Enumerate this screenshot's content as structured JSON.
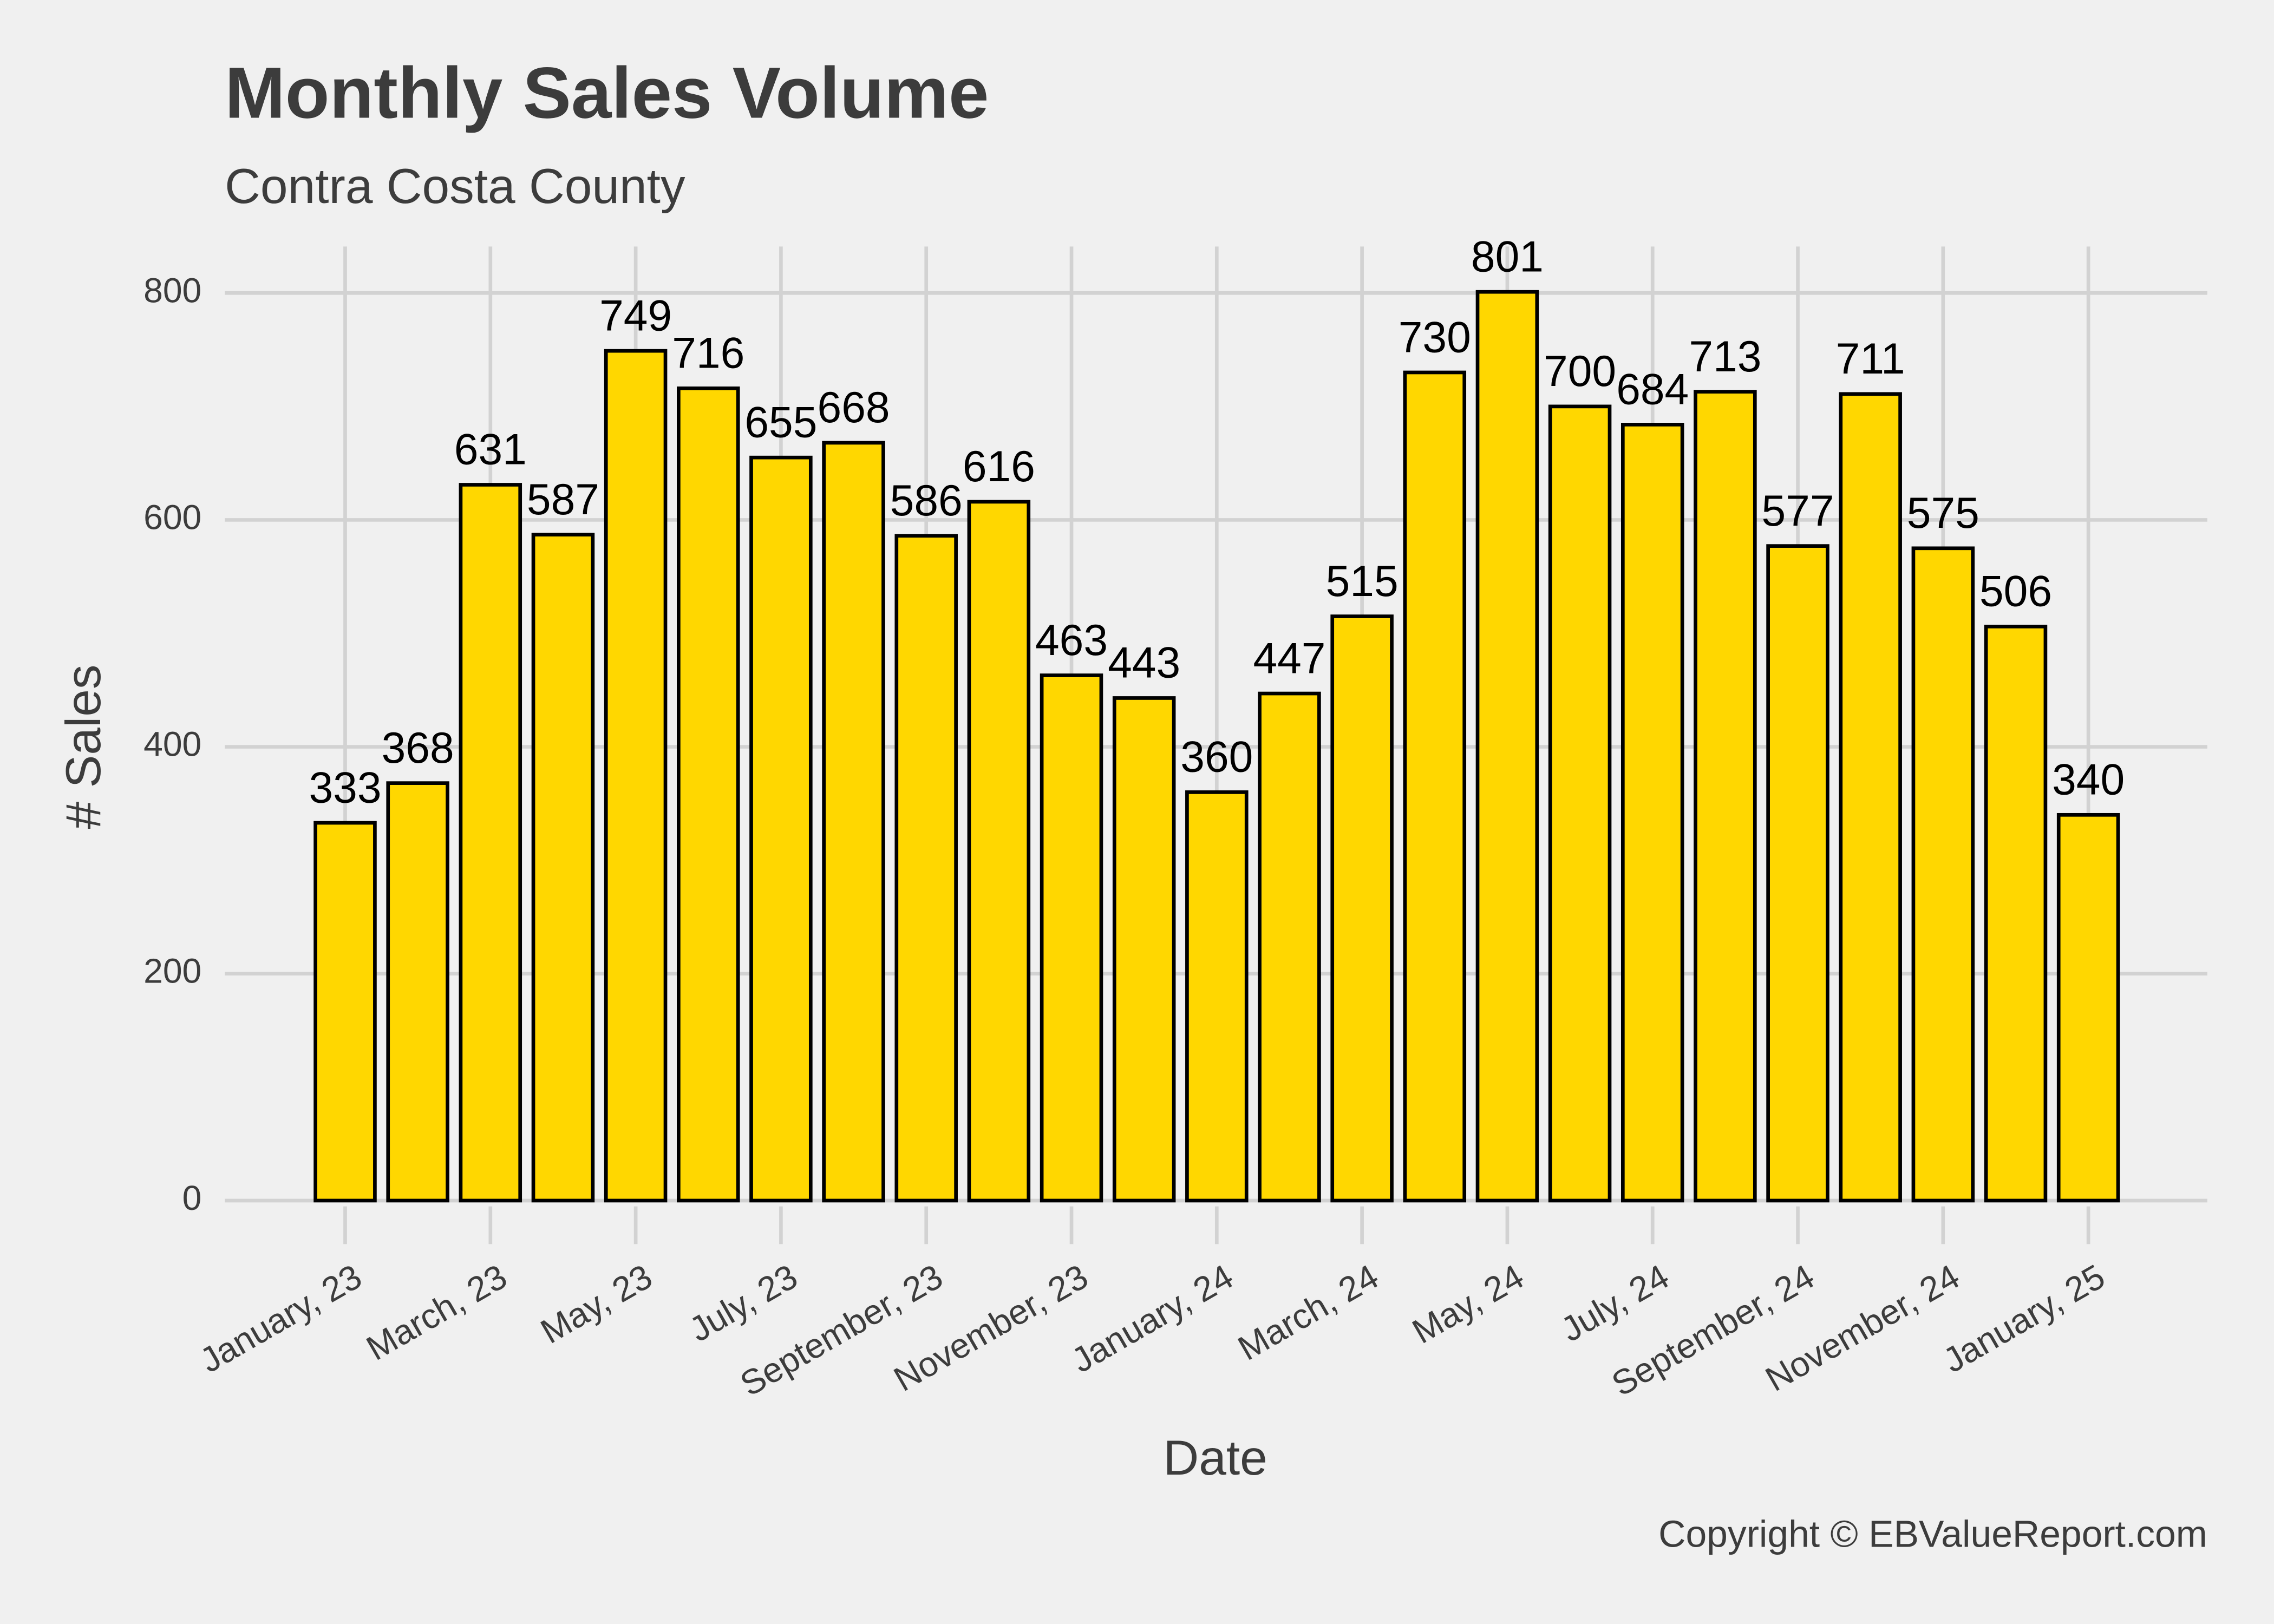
{
  "chart_data": {
    "type": "bar",
    "title": "Monthly Sales Volume",
    "subtitle": "Contra Costa County",
    "x_label": "Date",
    "y_label": "# Sales",
    "caption": "Copyright  © EBValueReport.com",
    "categories": [
      "January, 23",
      null,
      "March, 23",
      null,
      "May, 23",
      null,
      "July, 23",
      null,
      "September, 23",
      null,
      "November, 23",
      null,
      "January, 24",
      null,
      "March, 24",
      null,
      "May, 24",
      null,
      "July, 24",
      null,
      "September, 24",
      null,
      "November, 24",
      null,
      "January, 25"
    ],
    "values": [
      333,
      368,
      631,
      587,
      749,
      716,
      655,
      668,
      586,
      616,
      463,
      443,
      360,
      447,
      515,
      730,
      801,
      700,
      684,
      713,
      577,
      711,
      575,
      506,
      340
    ],
    "color": "#FFD700",
    "edge_color": "#000000",
    "ylim": [
      0,
      841
    ],
    "yticks": [
      0,
      200,
      400,
      600,
      800
    ],
    "grid": true
  }
}
